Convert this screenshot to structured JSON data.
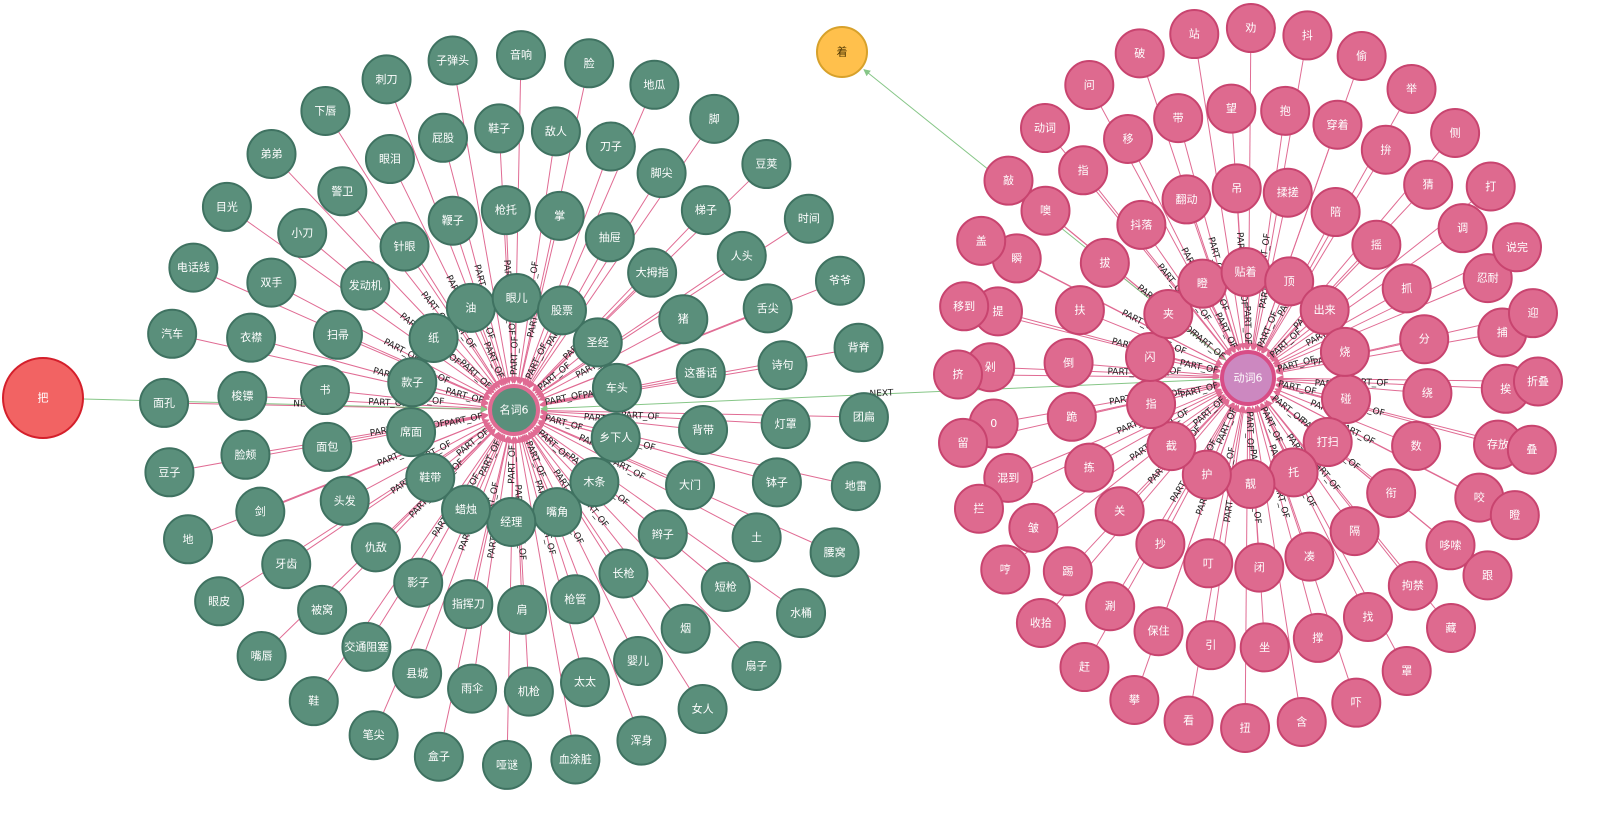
{
  "graph": {
    "colors": {
      "noun_fill": "#5a8f7b",
      "noun_stroke": "#3f7261",
      "verb_fill": "#de6a8f",
      "verb_stroke": "#c8446f",
      "hub_verb_fill": "#cc88c0",
      "hub_verb_stroke": "#d84d86",
      "red_fill": "#f26363",
      "red_stroke": "#d41f2b",
      "yellow_fill": "#ffc04c",
      "yellow_stroke": "#d7a12b",
      "part_edge": "#e06b93",
      "next_edge": "#86c687"
    },
    "noun_hub": {
      "label": "名词6"
    },
    "verb_hub": {
      "label": "动词6"
    },
    "ba_node": {
      "label": "把"
    },
    "zhe_node": {
      "label": "着"
    },
    "edge_labels": {
      "part_of": "PART_OF",
      "next": "NEXT"
    },
    "noun_nodes": [
      "乡下人",
      "木条",
      "嘴角",
      "经理",
      "蜡烛",
      "鞋带",
      "席面",
      "款子",
      "纸",
      "油",
      "眼儿",
      "股票",
      "圣经",
      "车头",
      "背带",
      "大门",
      "辫子",
      "长枪",
      "枪管",
      "肩",
      "指挥刀",
      "影子",
      "仇敌",
      "头发",
      "面包",
      "书",
      "扫帚",
      "发动机",
      "针眼",
      "鞭子",
      "枪托",
      "掌",
      "抽屉",
      "大拇指",
      "猪",
      "这番话",
      "灯罩",
      "钵子",
      "土",
      "短枪",
      "烟",
      "婴儿",
      "太太",
      "机枪",
      "雨伞",
      "县城",
      "交通阻塞",
      "被窝",
      "牙齿",
      "剑",
      "脸颊",
      "梭镖",
      "衣襟",
      "双手",
      "小刀",
      "警卫",
      "眼泪",
      "屁股",
      "鞋子",
      "敌人",
      "刀子",
      "脚尖",
      "梯子",
      "人头",
      "舌尖",
      "诗句",
      "团扁",
      "地雷",
      "腰窝",
      "水桶",
      "扇子",
      "女人",
      "浑身",
      "血涂脏",
      "哑谜",
      "盒子",
      "笔尖",
      "鞋",
      "嘴唇",
      "眼皮",
      "地",
      "豆子",
      "面孔",
      "汽车",
      "电话线",
      "目光",
      "弟弟",
      "下唇",
      "刺刀",
      "子弹头",
      "音响",
      "脸",
      "地瓜",
      "脚",
      "豆荚",
      "时间",
      "爷爷",
      "背脊"
    ],
    "verb_nodes": [
      "碰",
      "打扫",
      "托",
      "靓",
      "护",
      "截",
      "指",
      "闪",
      "夹",
      "瞪",
      "贴着",
      "顶",
      "出来",
      "烧",
      "绕",
      "数",
      "衔",
      "隔",
      "凑",
      "闭",
      "叮",
      "抄",
      "关",
      "拣",
      "跪",
      "倒",
      "扶",
      "拔",
      "抖落",
      "翻动",
      "吊",
      "揉搓",
      "陪",
      "摇",
      "抓",
      "分",
      "挨",
      "存放",
      "咬",
      "哆嗦",
      "拘禁",
      "找",
      "撑",
      "坐",
      "引",
      "保住",
      "涮",
      "踢",
      "皱",
      "混到",
      "0",
      "剁",
      "提",
      "瞬",
      "噢",
      "指",
      "移",
      "带",
      "望",
      "抱",
      "穿着",
      "拚",
      "猜",
      "调",
      "忍耐",
      "捕",
      "折叠",
      "叠",
      "瞪",
      "跟",
      "藏",
      "罩",
      "吓",
      "含",
      "扭",
      "看",
      "攀",
      "赶",
      "收拾",
      "哼",
      "拦",
      "留",
      "挤",
      "移到",
      "盖",
      "敲",
      "动词",
      "问",
      "破",
      "站",
      "劝",
      "抖",
      "偷",
      "举",
      "侧",
      "打",
      "说完",
      "迎"
    ]
  }
}
